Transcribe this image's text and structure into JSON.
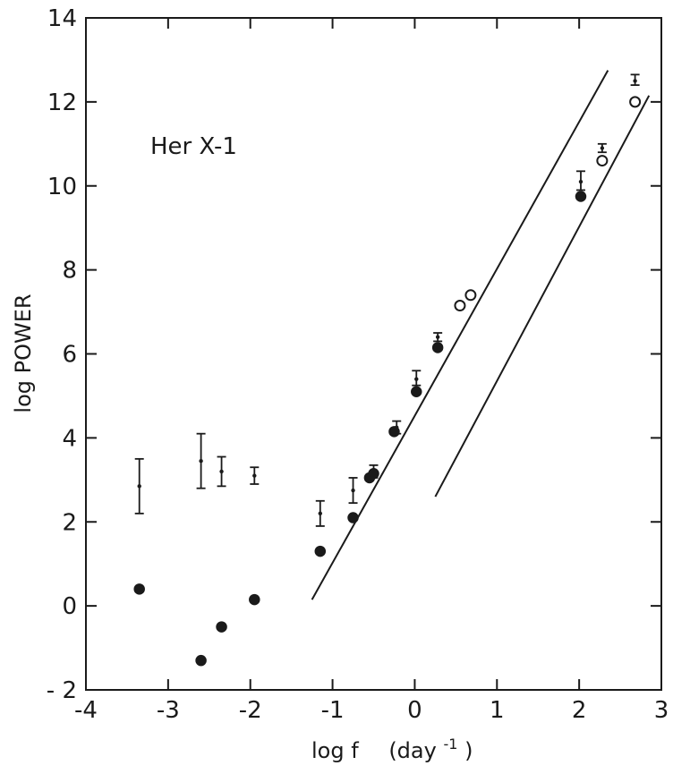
{
  "chart_data": {
    "type": "scatter",
    "title": "",
    "annotation": "Her X-1",
    "xlabel": "log f",
    "xunit_base": "(day",
    "xunit_exp": "-1",
    "xunit_close": ")",
    "ylabel": "log POWER",
    "xlim": [
      -4,
      3
    ],
    "ylim": [
      -2,
      14
    ],
    "xticks": [
      -4,
      -3,
      -2,
      -1,
      0,
      1,
      2,
      3
    ],
    "xtick_labels": [
      "-4",
      "-3",
      "-2",
      "-1",
      "0",
      "1",
      "2",
      "3"
    ],
    "yticks": [
      -2,
      0,
      2,
      4,
      6,
      8,
      10,
      12,
      14
    ],
    "ytick_labels": [
      "- 2",
      "0",
      "2",
      "4",
      "6",
      "8",
      "10",
      "12",
      "14"
    ],
    "grid": false,
    "series": [
      {
        "marker": "filled-circle",
        "points": [
          {
            "x": -3.35,
            "y": 0.4
          },
          {
            "x": -2.6,
            "y": -1.3
          },
          {
            "x": -2.35,
            "y": -0.5
          },
          {
            "x": -1.95,
            "y": 0.15
          },
          {
            "x": -1.15,
            "y": 1.3
          },
          {
            "x": -0.75,
            "y": 2.1
          },
          {
            "x": -0.55,
            "y": 3.05
          },
          {
            "x": -0.5,
            "y": 3.15
          },
          {
            "x": -0.25,
            "y": 4.15
          },
          {
            "x": 0.02,
            "y": 5.1
          },
          {
            "x": 0.28,
            "y": 6.15
          },
          {
            "x": 2.02,
            "y": 9.75
          }
        ]
      },
      {
        "marker": "open-circle",
        "points": [
          {
            "x": 0.55,
            "y": 7.15
          },
          {
            "x": 0.68,
            "y": 7.4
          },
          {
            "x": 2.28,
            "y": 10.6
          },
          {
            "x": 2.68,
            "y": 12.0
          }
        ]
      },
      {
        "marker": "error-bar",
        "points": [
          {
            "x": -3.35,
            "y": 2.85,
            "lo": 2.2,
            "hi": 3.5
          },
          {
            "x": -2.6,
            "y": 3.45,
            "lo": 2.8,
            "hi": 4.1
          },
          {
            "x": -2.35,
            "y": 3.2,
            "lo": 2.85,
            "hi": 3.55
          },
          {
            "x": -1.95,
            "y": 3.1,
            "lo": 2.9,
            "hi": 3.3
          },
          {
            "x": -1.15,
            "y": 2.2,
            "lo": 1.9,
            "hi": 2.5
          },
          {
            "x": -0.75,
            "y": 2.75,
            "lo": 2.45,
            "hi": 3.05
          },
          {
            "x": -0.5,
            "y": 3.2,
            "lo": 3.05,
            "hi": 3.35
          },
          {
            "x": -0.22,
            "y": 4.25,
            "lo": 4.1,
            "hi": 4.4
          },
          {
            "x": 0.02,
            "y": 5.4,
            "lo": 5.25,
            "hi": 5.6
          },
          {
            "x": 0.28,
            "y": 6.4,
            "lo": 6.3,
            "hi": 6.5
          },
          {
            "x": 2.02,
            "y": 10.1,
            "lo": 9.9,
            "hi": 10.35
          },
          {
            "x": 2.28,
            "y": 10.9,
            "lo": 10.8,
            "hi": 11.0
          },
          {
            "x": 2.68,
            "y": 12.5,
            "lo": 12.4,
            "hi": 12.65
          }
        ]
      }
    ],
    "fit_lines": [
      {
        "x1": -1.25,
        "y1": 0.15,
        "x2": 2.35,
        "y2": 12.75
      },
      {
        "x1": 0.25,
        "y1": 2.6,
        "x2": 2.85,
        "y2": 12.15
      }
    ]
  }
}
